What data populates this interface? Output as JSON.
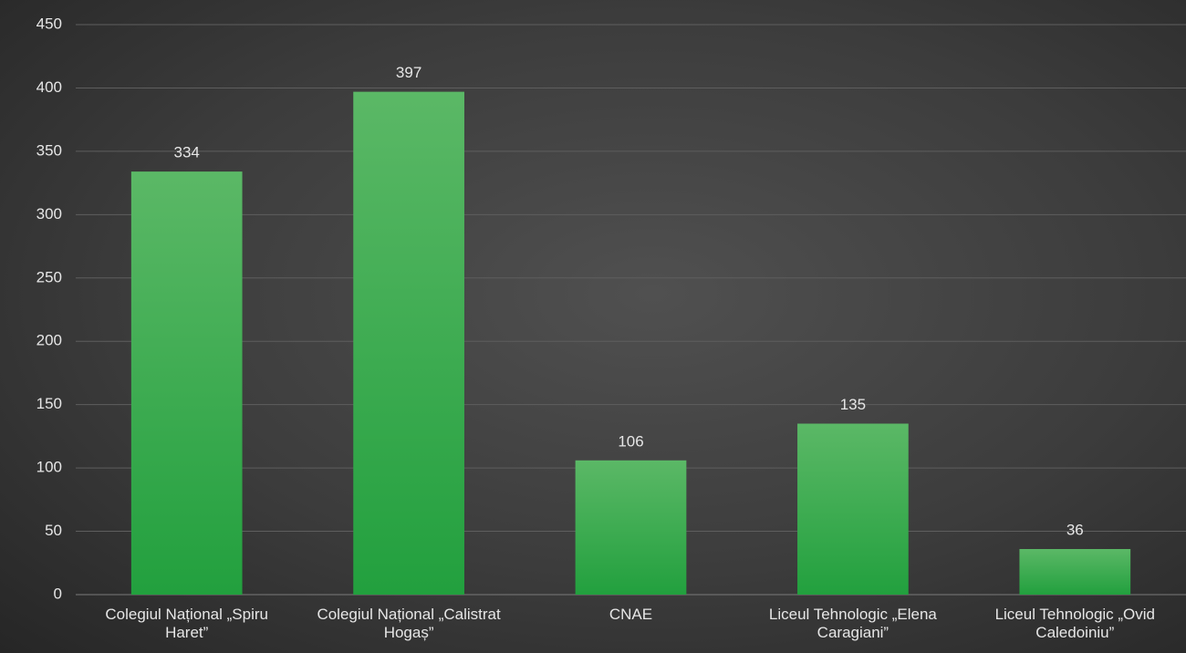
{
  "chart_data": {
    "type": "bar",
    "categories": [
      "Colegiul Național „Spiru Haret”",
      "Colegiul Național „Calistrat Hogaș”",
      "CNAE",
      "Liceul Tehnologic „Elena Caragiani”",
      "Liceul Tehnologic „Ovid Caledoiniu”"
    ],
    "values": [
      334,
      397,
      106,
      135,
      36
    ],
    "color": "#2eaa48",
    "ylim": [
      0,
      450
    ],
    "yticks": [
      0,
      50,
      100,
      150,
      200,
      250,
      300,
      350,
      400,
      450
    ],
    "grid": true
  }
}
